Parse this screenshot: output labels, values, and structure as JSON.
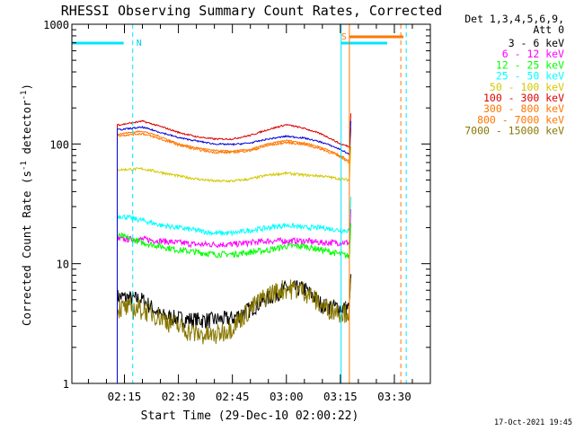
{
  "chart_data": {
    "type": "line",
    "title": "RHESSI Observing Summary Count Rates, Corrected",
    "ylabel_main": "Corrected Count Rate (s",
    "ylabel_sup1": "-1",
    "ylabel_mid": " detector",
    "ylabel_sup2": "-1",
    "ylabel_end": ")",
    "xlabel": "Start Time (29-Dec-10 02:00:22)",
    "footer_timestamp": "17-Oct-2021 19:45",
    "x_ticks": [
      "02:15",
      "02:30",
      "02:45",
      "03:00",
      "03:15",
      "03:30"
    ],
    "x_tick_minutes": [
      15,
      30,
      45,
      60,
      75,
      90
    ],
    "xlim_minutes": [
      0.4,
      100
    ],
    "y_scale": "log",
    "ylim": [
      1,
      1000
    ],
    "y_ticks": [
      "1",
      "10",
      "100",
      "1000"
    ],
    "y_tick_values": [
      1,
      10,
      100,
      1000
    ],
    "legend_header": [
      "Det 1,3,4,5,6,9,",
      "Att 0"
    ],
    "night_label": "N",
    "saa_label": "S",
    "series": [
      {
        "name": "3 - 6 keV",
        "color": "#000000",
        "noise": 0.16,
        "t": [
          13,
          14,
          20,
          25,
          30,
          35,
          40,
          45,
          50,
          55,
          60,
          65,
          70,
          75,
          77.5
        ],
        "v": [
          5.3,
          5.3,
          5.0,
          3.7,
          3.5,
          3.4,
          3.4,
          3.5,
          4.2,
          5.2,
          6.3,
          6.2,
          4.5,
          4.3,
          4.3
        ]
      },
      {
        "name": "6 - 12 keV",
        "color": "#ff00ff",
        "noise": 0.06,
        "t": [
          13,
          14,
          20,
          25,
          30,
          35,
          40,
          45,
          50,
          55,
          60,
          65,
          70,
          75,
          77.5
        ],
        "v": [
          16,
          16,
          16,
          15.5,
          15,
          14.5,
          14.5,
          14.5,
          15,
          15.5,
          15.5,
          15.5,
          15,
          15,
          15
        ]
      },
      {
        "name": "12 - 25 keV",
        "color": "#00ff00",
        "noise": 0.06,
        "t": [
          13,
          14,
          20,
          25,
          30,
          35,
          40,
          45,
          50,
          55,
          60,
          65,
          70,
          75,
          77.5
        ],
        "v": [
          17,
          17,
          15,
          14,
          13,
          12.5,
          12,
          12,
          12.5,
          13,
          14,
          14,
          13,
          12,
          11.5
        ]
      },
      {
        "name": "25 - 50 keV",
        "color": "#00ffff",
        "noise": 0.05,
        "t": [
          13,
          14,
          20,
          25,
          30,
          35,
          40,
          45,
          50,
          55,
          60,
          65,
          70,
          75,
          77.5
        ],
        "v": [
          25,
          25,
          23,
          21,
          20,
          19,
          18,
          18,
          19,
          20,
          21,
          20,
          20,
          19,
          19
        ]
      },
      {
        "name": "50 - 100 keV",
        "color": "#d4c800",
        "noise": 0.025,
        "t": [
          13,
          14,
          20,
          25,
          30,
          35,
          40,
          45,
          50,
          55,
          60,
          65,
          70,
          75,
          77.5
        ],
        "v": [
          61,
          61,
          62,
          58,
          54,
          51,
          49,
          49,
          51,
          55,
          57,
          55,
          54,
          51,
          50
        ]
      },
      {
        "name": "100 - 300 keV",
        "color": "#dd0000",
        "noise": 0.015,
        "t": [
          13,
          14,
          20,
          25,
          30,
          35,
          40,
          45,
          50,
          55,
          60,
          65,
          70,
          75,
          77.5
        ],
        "v": [
          145,
          145,
          155,
          140,
          125,
          115,
          110,
          110,
          118,
          132,
          145,
          135,
          120,
          100,
          95
        ]
      },
      {
        "name": "300 - 800 keV",
        "color": "#ff7700",
        "noise": 0.015,
        "t": [
          13,
          14,
          20,
          25,
          30,
          35,
          40,
          45,
          50,
          55,
          60,
          65,
          70,
          75,
          77.5
        ],
        "v": [
          122,
          122,
          128,
          115,
          100,
          93,
          88,
          87,
          90,
          100,
          107,
          102,
          93,
          80,
          72
        ]
      },
      {
        "name": "800 - 7000 keV",
        "color": "#ff7700",
        "noise": 0.02,
        "t": [
          13,
          14,
          20,
          25,
          30,
          35,
          40,
          45,
          50,
          55,
          60,
          65,
          70,
          75,
          77.5
        ],
        "v": [
          118,
          118,
          122,
          110,
          98,
          90,
          85,
          85,
          88,
          97,
          103,
          99,
          90,
          78,
          70
        ]
      },
      {
        "name": "7000 - 15000 keV",
        "color": "#887700",
        "noise": 0.2,
        "t": [
          13,
          14,
          20,
          25,
          30,
          35,
          40,
          45,
          50,
          55,
          60,
          65,
          70,
          75,
          77.5
        ],
        "v": [
          4.3,
          4.3,
          4.2,
          3.6,
          3.0,
          2.6,
          2.5,
          3.0,
          4.2,
          5.6,
          6.3,
          6.0,
          4.4,
          4.0,
          4.0
        ]
      },
      {
        "name": "",
        "color": "#0000dd",
        "noise": 0.015,
        "t": [
          13,
          14,
          20,
          25,
          30,
          35,
          40,
          45,
          50,
          55,
          60,
          65,
          70,
          75,
          77.5
        ],
        "v": [
          132,
          132,
          138,
          125,
          113,
          106,
          100,
          99,
          102,
          110,
          116,
          112,
          103,
          90,
          82
        ]
      }
    ],
    "night_intervals": [
      [
        0.4,
        14.8
      ],
      [
        75.2,
        88
      ]
    ],
    "saa_intervals": [
      [
        77.5,
        92.5
      ]
    ],
    "night_dashed_lines": [
      17.3,
      93.3
    ],
    "saa_solid_lines": [
      77.5
    ],
    "saa_dashed_lines": [
      91.8
    ]
  }
}
